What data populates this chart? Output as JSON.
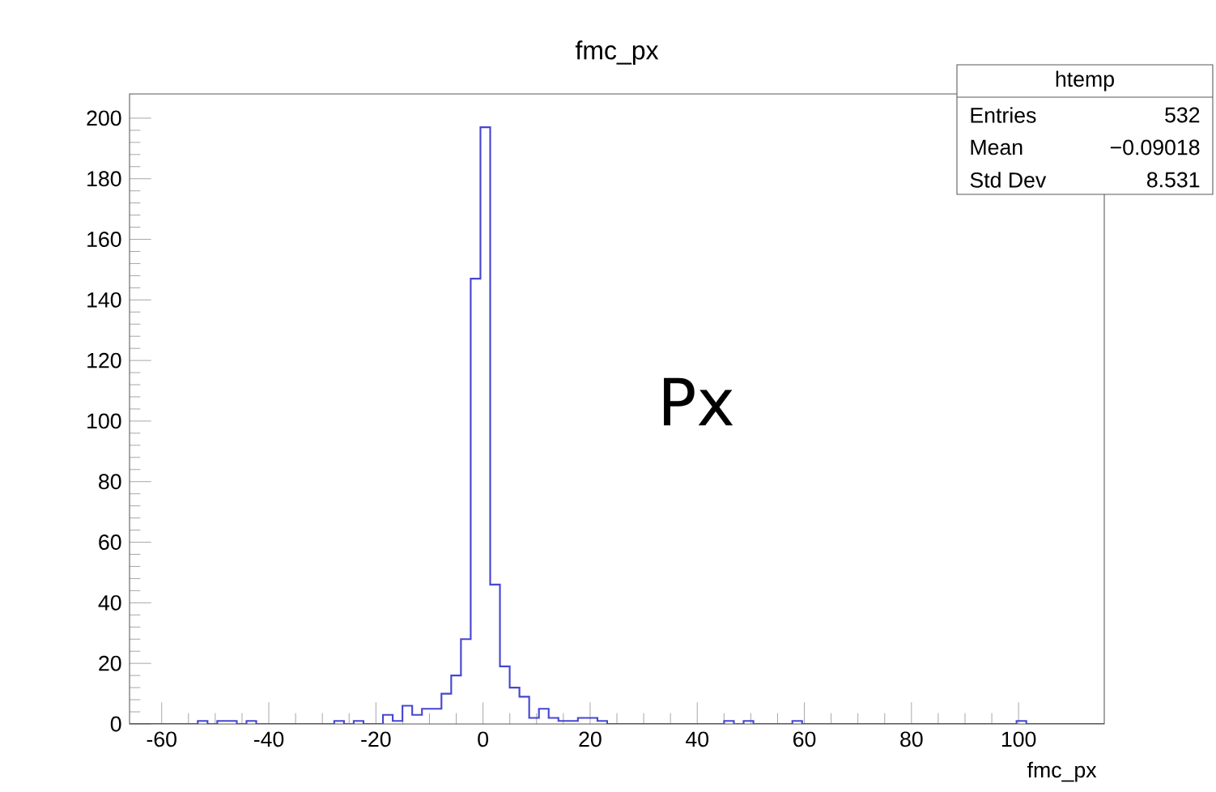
{
  "chart_data": {
    "type": "histogram",
    "title": "fmc_px",
    "xlabel": "fmc_px",
    "color": "#4646d2",
    "bins": [
      -66.0,
      -64.18,
      -62.36,
      -60.54,
      -58.72,
      -56.9,
      -55.08,
      -53.26,
      -51.44,
      -49.62,
      -47.8,
      -45.98,
      -44.16,
      -42.34,
      -40.52,
      -38.7,
      -36.88,
      -35.06,
      -33.24,
      -31.42,
      -29.6,
      -27.78,
      -25.96,
      -24.14,
      -22.32,
      -20.5,
      -18.68,
      -16.86,
      -15.04,
      -13.22,
      -11.4,
      -9.58,
      -7.76,
      -5.94,
      -4.12,
      -2.3,
      -0.48,
      1.34,
      3.16,
      4.98,
      6.8,
      8.62,
      10.44,
      12.26,
      14.08,
      15.9,
      17.72,
      19.54,
      21.36,
      23.18,
      25.0,
      26.82,
      28.64,
      30.46,
      32.28,
      34.1,
      35.92,
      37.74,
      39.56,
      41.38,
      43.2,
      45.02,
      46.84,
      48.66,
      50.48,
      52.3,
      54.12,
      55.94,
      57.76,
      59.58,
      61.4,
      63.22,
      65.04,
      66.86,
      68.68,
      70.5,
      72.32,
      74.14,
      75.96,
      77.78,
      79.6,
      81.42,
      83.24,
      85.06,
      86.88,
      88.7,
      90.52,
      92.34,
      94.16,
      95.98,
      97.8,
      99.62,
      101.44,
      103.26,
      105.08,
      106.9,
      108.72,
      110.54,
      112.36,
      114.18,
      116.0
    ],
    "values": [
      0,
      0,
      0,
      0,
      0,
      0,
      0,
      1,
      0,
      1,
      1,
      0,
      1,
      0,
      0,
      0,
      0,
      0,
      0,
      0,
      0,
      1,
      0,
      1,
      0,
      0,
      3,
      1,
      6,
      3,
      5,
      5,
      10,
      16,
      28,
      147,
      197,
      46,
      19,
      12,
      9,
      2,
      5,
      2,
      1,
      1,
      2,
      2,
      1,
      0,
      0,
      0,
      0,
      0,
      0,
      0,
      0,
      0,
      0,
      0,
      0,
      1,
      0,
      1,
      0,
      0,
      0,
      0,
      1,
      0,
      0,
      0,
      0,
      0,
      0,
      0,
      0,
      0,
      0,
      0,
      0,
      0,
      0,
      0,
      0,
      0,
      0,
      0,
      0,
      0,
      0,
      1,
      0,
      0,
      0,
      0,
      0,
      0,
      0,
      0
    ],
    "xlim": [
      -66,
      116
    ],
    "ylim": [
      0,
      208
    ],
    "xticks": [
      -60,
      -40,
      -20,
      0,
      20,
      40,
      60,
      80,
      100
    ],
    "yticks": [
      0,
      20,
      40,
      60,
      80,
      100,
      120,
      140,
      160,
      180,
      200
    ],
    "annotations": [
      "Px",
      "htemp",
      "Entries",
      "532",
      "Mean",
      "−0.09018",
      "Std Dev",
      "8.531"
    ]
  }
}
